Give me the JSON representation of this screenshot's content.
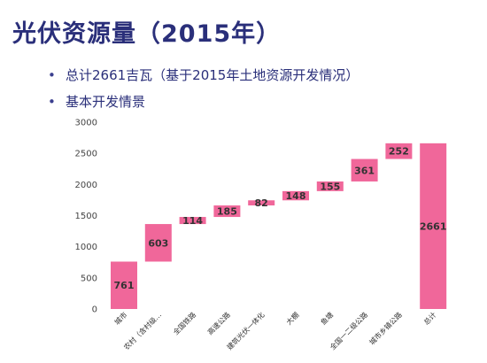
{
  "title": "光伏资源量（2015年）",
  "bullets": [
    "总计2661吉瓦（基于2015年土地资源开发情况）",
    "基本开发情景"
  ],
  "chart_data": {
    "type": "bar",
    "subtype": "waterfall",
    "categories": [
      "城市",
      "农村（含村级…",
      "全国铁路",
      "高速公路",
      "建筑光伏一体化",
      "大棚",
      "鱼塘",
      "全国一二级公路",
      "城市乡镇公路",
      "总计"
    ],
    "values": [
      761,
      603,
      114,
      185,
      82,
      148,
      155,
      361,
      252,
      2661
    ],
    "data_labels": [
      "761",
      "603",
      "114",
      "185",
      "82",
      "148",
      "155",
      "361",
      "252",
      "2661"
    ],
    "yticks": [
      "0",
      "500",
      "1000",
      "1500",
      "2000",
      "2500",
      "3000"
    ],
    "ylim": [
      0,
      3000
    ],
    "bar_color": "#f0679a",
    "grid": false,
    "title": "",
    "xlabel": "",
    "ylabel": ""
  }
}
